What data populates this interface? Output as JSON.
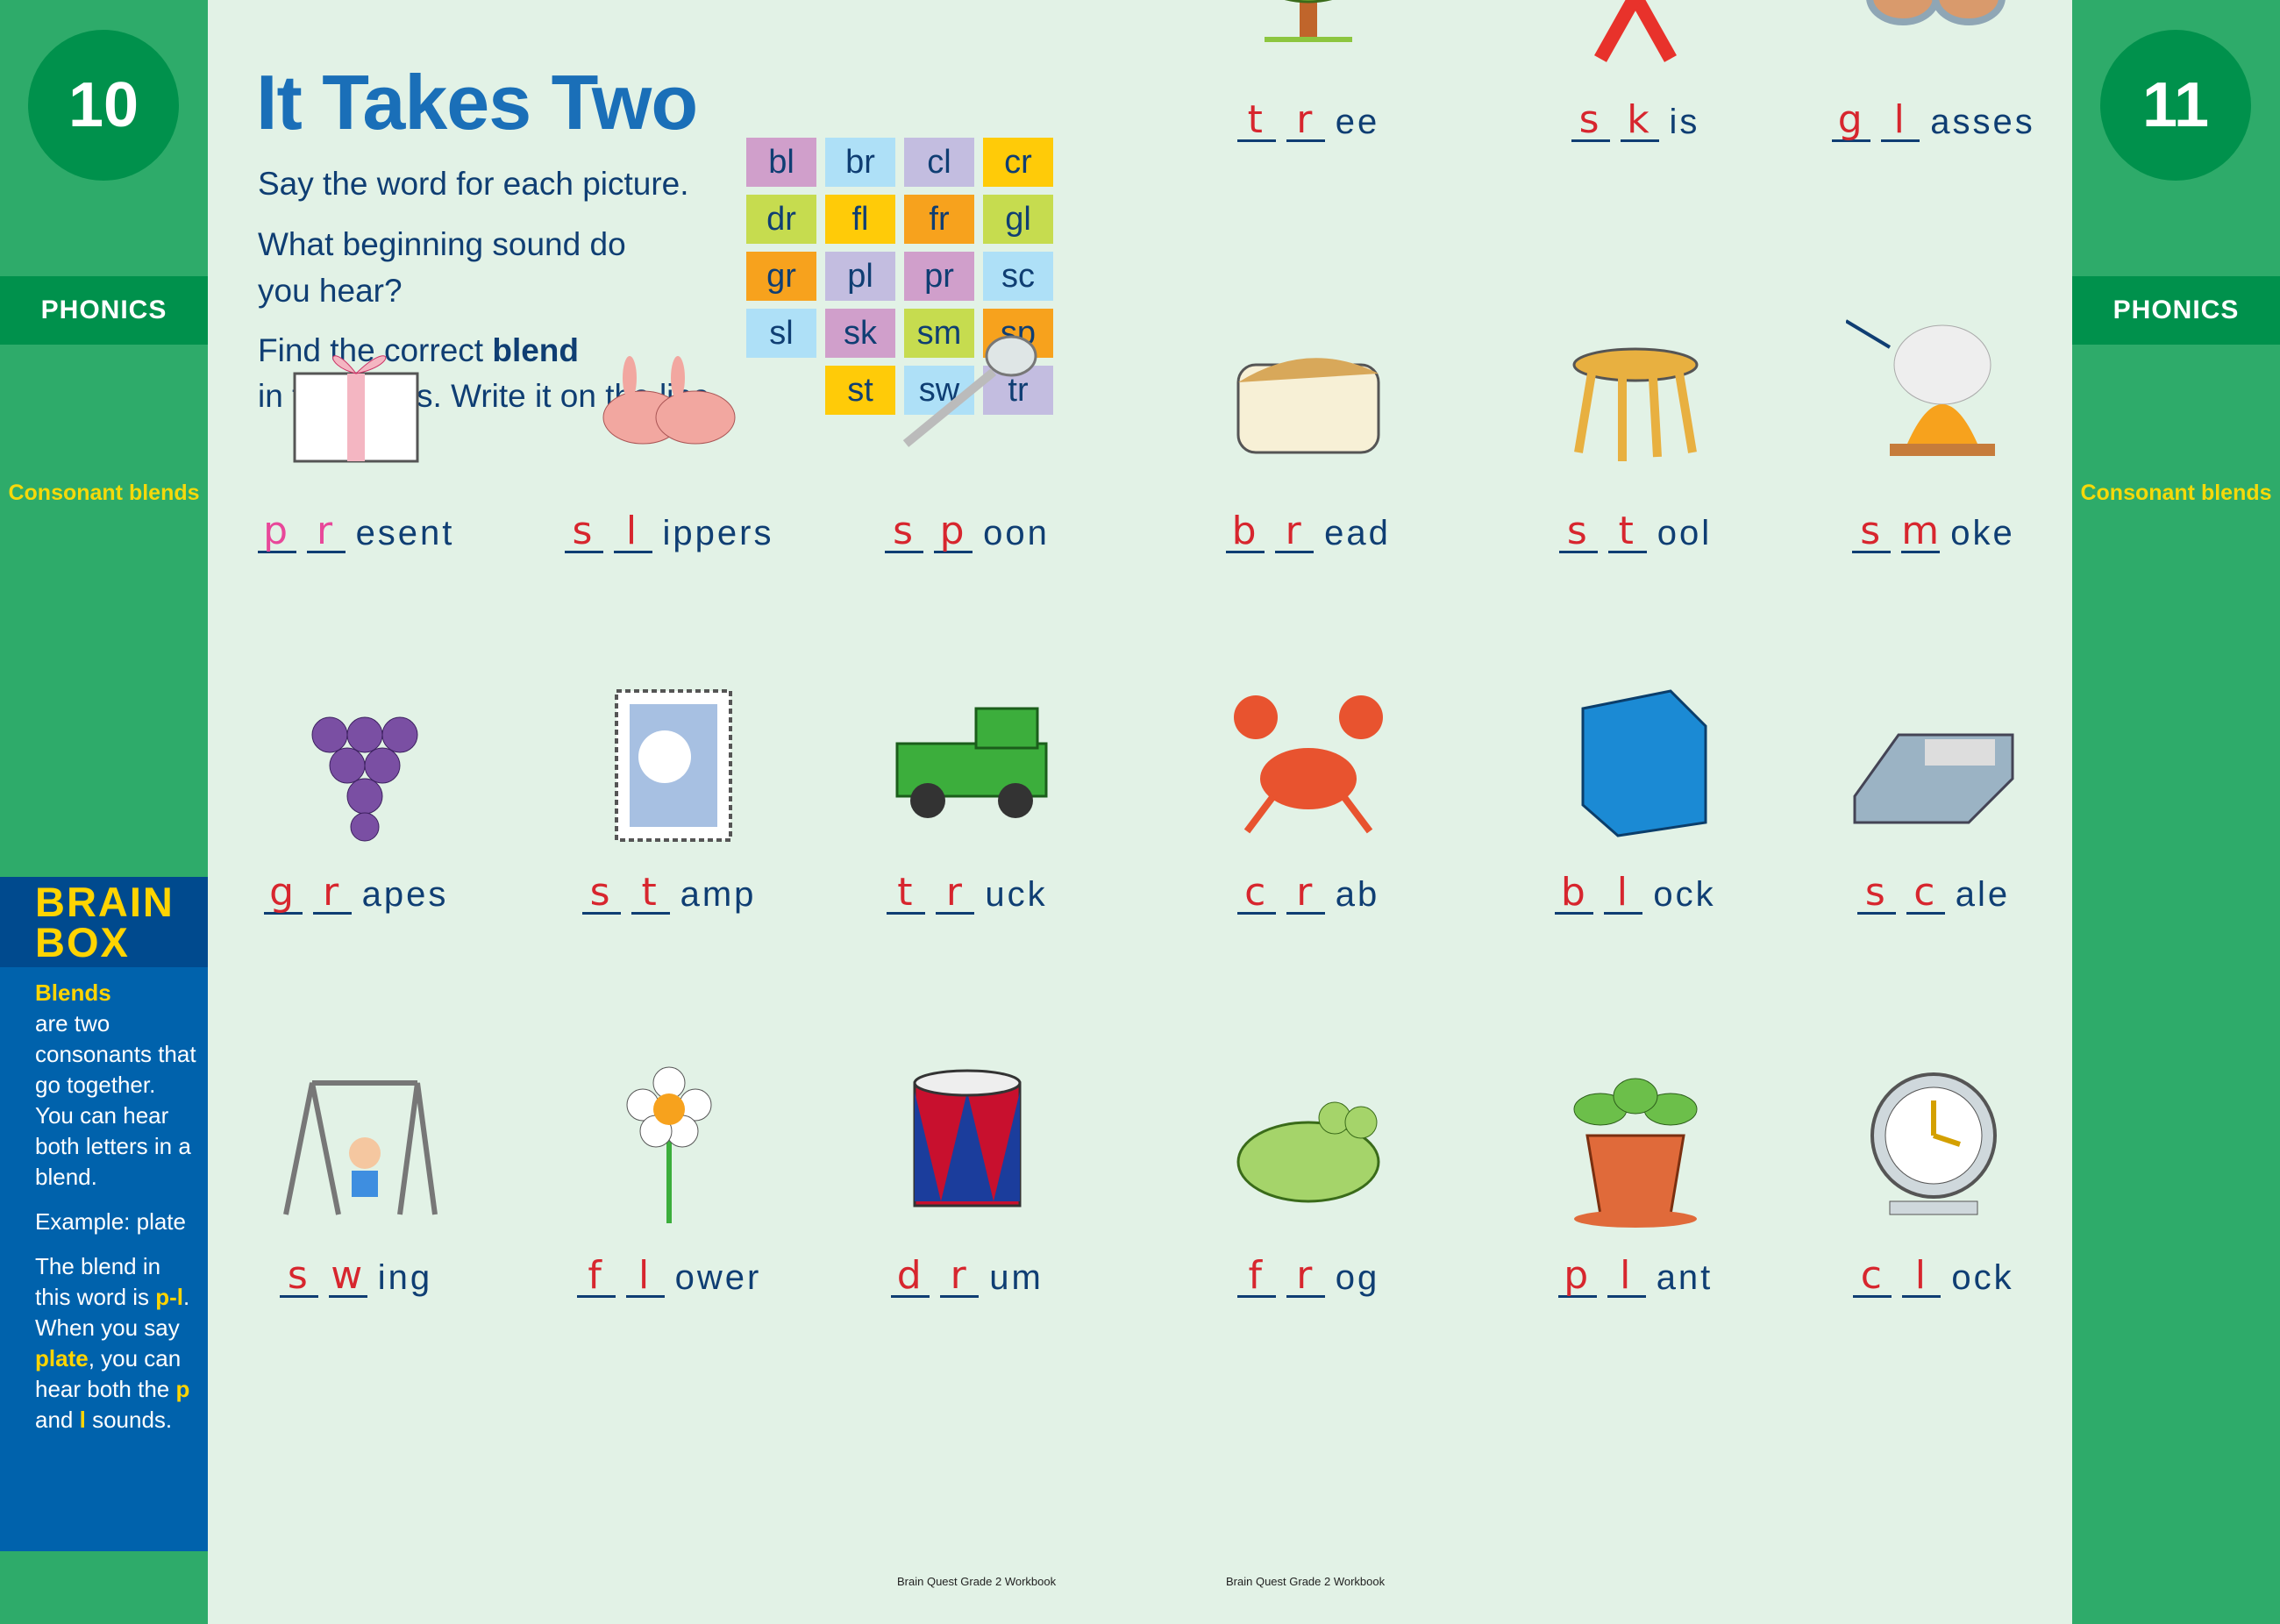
{
  "left_page": {
    "number": "10",
    "section": "PHONICS",
    "topic": "Consonant blends"
  },
  "right_page": {
    "number": "11",
    "section": "PHONICS",
    "topic": "Consonant blends"
  },
  "brain_box": {
    "title_line1": "BRAIN",
    "title_line2": "BOX",
    "p1_bold": "Blends",
    "p1_rest": "are two consonants that go together. You can hear both letters in a blend.",
    "p2": "Example: plate",
    "p3_a": "The blend in this word is ",
    "p3_b": "p-l",
    "p3_c": ". When you say ",
    "p3_d": "plate",
    "p3_e": ", you can hear both the ",
    "p3_f": "p",
    "p3_g": " and ",
    "p3_h": "l",
    "p3_i": " sounds."
  },
  "title": "It Takes Two",
  "instructions": {
    "line1": "Say the word for each picture.",
    "line2": "What beginning sound do",
    "line3": "you hear?",
    "line4a": "Find the correct ",
    "line4b": "blend",
    "line5": "in the boxes. Write it on the line."
  },
  "blend_boxes": [
    {
      "text": "bl",
      "color": "#d09fcb"
    },
    {
      "text": "br",
      "color": "#aee0f7"
    },
    {
      "text": "cl",
      "color": "#c3bde0"
    },
    {
      "text": "cr",
      "color": "#ffcb08"
    },
    {
      "text": "dr",
      "color": "#c6dc4f"
    },
    {
      "text": "fl",
      "color": "#ffcb08"
    },
    {
      "text": "fr",
      "color": "#f7a21d"
    },
    {
      "text": "gl",
      "color": "#c6dc4f"
    },
    {
      "text": "gr",
      "color": "#f7a21d"
    },
    {
      "text": "pl",
      "color": "#c3bde0"
    },
    {
      "text": "pr",
      "color": "#d09fcb"
    },
    {
      "text": "sc",
      "color": "#aee0f7"
    },
    {
      "text": "sl",
      "color": "#aee0f7"
    },
    {
      "text": "sk",
      "color": "#d09fcb"
    },
    {
      "text": "sm",
      "color": "#c6dc4f"
    },
    {
      "text": "sp",
      "color": "#f7a21d"
    },
    {
      "text": "st",
      "color": "#ffcb08"
    },
    {
      "text": "sw",
      "color": "#aee0f7"
    },
    {
      "text": "tr",
      "color": "#c3bde0"
    }
  ],
  "items": [
    {
      "a": "t",
      "b": "r",
      "rest": "ee",
      "icon": "tree"
    },
    {
      "a": "s",
      "b": "k",
      "rest": "is",
      "icon": "skis"
    },
    {
      "a": "g",
      "b": "l",
      "rest": "asses",
      "icon": "glasses"
    },
    {
      "a": "p",
      "b": "r",
      "rest": "esent",
      "icon": "present",
      "answer_color": "#e8489a"
    },
    {
      "a": "s",
      "b": "l",
      "rest": "ippers",
      "icon": "slippers"
    },
    {
      "a": "s",
      "b": "p",
      "rest": "oon",
      "icon": "spoon"
    },
    {
      "a": "b",
      "b": "r",
      "rest": "ead",
      "icon": "bread"
    },
    {
      "a": "s",
      "b": "t",
      "rest": "ool",
      "icon": "stool"
    },
    {
      "a": "s",
      "b": "m",
      "rest": "oke",
      "icon": "smoke"
    },
    {
      "a": "g",
      "b": "r",
      "rest": "apes",
      "icon": "grapes"
    },
    {
      "a": "s",
      "b": "t",
      "rest": "amp",
      "icon": "stamp"
    },
    {
      "a": "t",
      "b": "r",
      "rest": "uck",
      "icon": "truck"
    },
    {
      "a": "c",
      "b": "r",
      "rest": "ab",
      "icon": "crab"
    },
    {
      "a": "b",
      "b": "l",
      "rest": "ock",
      "icon": "block"
    },
    {
      "a": "s",
      "b": "c",
      "rest": "ale",
      "icon": "scale"
    },
    {
      "a": "s",
      "b": "w",
      "rest": "ing",
      "icon": "swing"
    },
    {
      "a": "f",
      "b": "l",
      "rest": "ower",
      "icon": "flower"
    },
    {
      "a": "d",
      "b": "r",
      "rest": "um",
      "icon": "drum"
    },
    {
      "a": "f",
      "b": "r",
      "rest": "og",
      "icon": "frog"
    },
    {
      "a": "p",
      "b": "l",
      "rest": "ant",
      "icon": "plant"
    },
    {
      "a": "c",
      "b": "l",
      "rest": "ock",
      "icon": "clock"
    }
  ],
  "footer": {
    "left": "Brain Quest Grade 2 Workbook",
    "right": "Brain Quest Grade 2 Workbook"
  },
  "colors": {
    "sidebar": "#2eab6a",
    "accent_green": "#00914c",
    "brain_box": "#0062ac",
    "title": "#1a6fb8",
    "answer": "#d7262e",
    "text": "#0f3e73"
  }
}
